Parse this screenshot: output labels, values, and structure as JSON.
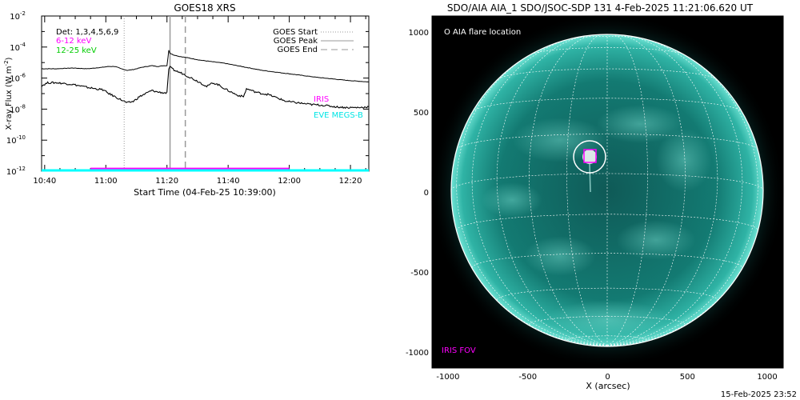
{
  "footer_timestamp": "15-Feb-2025 23:52",
  "chart_data": [
    {
      "type": "line",
      "title": "GOES18 XRS",
      "xlabel": "Start Time (04-Feb-25 10:39:00)",
      "ylabel": "X-ray Flux (W m",
      "ylabel_superscript": "-2",
      "ylabel_suffix": ")",
      "ylog": true,
      "xlim_minutes": [
        0,
        107
      ],
      "ylim_log10": [
        -12,
        -2
      ],
      "x_ticks": [
        {
          "label": "10:40",
          "min": 1
        },
        {
          "label": "11:00",
          "min": 21
        },
        {
          "label": "11:20",
          "min": 41
        },
        {
          "label": "11:40",
          "min": 61
        },
        {
          "label": "12:00",
          "min": 81
        },
        {
          "label": "12:20",
          "min": 101
        }
      ],
      "y_ticks": [
        {
          "base": "10",
          "exp": "-2",
          "v": -2
        },
        {
          "base": "10",
          "exp": "-4",
          "v": -4
        },
        {
          "base": "10",
          "exp": "-6",
          "v": -6
        },
        {
          "base": "10",
          "exp": "-8",
          "v": -8
        },
        {
          "base": "10",
          "exp": "-10",
          "v": -10
        },
        {
          "base": "10",
          "exp": "-12",
          "v": -12
        }
      ],
      "energy_labels": [
        {
          "text": "Det: 1,3,4,5,6,9",
          "color": "#000000"
        },
        {
          "text": "6-12 keV",
          "color": "#ff00ff"
        },
        {
          "text": "12-25 keV",
          "color": "#00ff00"
        }
      ],
      "legend": [
        {
          "label": "GOES Start",
          "style": "dotted",
          "color": "#999999"
        },
        {
          "label": "GOES Peak",
          "style": "solid",
          "color": "#999999"
        },
        {
          "label": "GOES End",
          "style": "dashed",
          "color": "#999999"
        }
      ],
      "legend_position": "top-right",
      "markers_min": {
        "start": 27,
        "peak": 42,
        "end": 47
      },
      "series": [
        {
          "color": "#000000",
          "x": [
            0,
            5,
            10,
            15,
            20,
            22,
            24,
            26,
            28,
            30,
            33,
            36,
            38,
            40,
            41,
            41.6,
            42,
            43,
            45,
            48,
            52,
            56,
            60,
            64,
            68,
            72,
            76,
            80,
            84,
            90,
            95,
            100,
            107
          ],
          "y_log10": [
            -5.4,
            -5.4,
            -5.35,
            -5.4,
            -5.3,
            -5.25,
            -5.25,
            -5.4,
            -5.5,
            -5.45,
            -5.3,
            -5.2,
            -5.25,
            -5.2,
            -5.2,
            -4.2,
            -4.4,
            -4.5,
            -4.6,
            -4.7,
            -4.85,
            -4.95,
            -5.05,
            -5.2,
            -5.35,
            -5.5,
            -5.6,
            -5.7,
            -5.8,
            -5.95,
            -6.05,
            -6.15,
            -6.25
          ]
        },
        {
          "color": "#000000",
          "x": [
            0,
            2,
            5,
            10,
            15,
            18,
            20,
            22,
            24,
            26,
            28,
            30,
            32,
            34,
            36,
            38,
            40,
            41,
            41.6,
            42,
            43,
            44,
            46,
            48,
            50,
            52,
            54,
            56,
            58,
            60,
            62,
            64,
            66,
            67,
            68,
            70,
            72,
            74,
            76,
            78,
            80,
            84,
            88,
            92,
            96,
            100,
            104,
            107
          ],
          "y_log10": [
            -6.5,
            -6.3,
            -6.3,
            -6.4,
            -6.6,
            -6.7,
            -6.75,
            -7.0,
            -7.2,
            -7.4,
            -7.6,
            -7.5,
            -7.2,
            -7.0,
            -6.8,
            -6.9,
            -6.95,
            -6.95,
            -5.4,
            -5.3,
            -5.45,
            -5.55,
            -5.7,
            -5.9,
            -6.1,
            -6.3,
            -6.55,
            -6.3,
            -6.45,
            -6.7,
            -6.9,
            -7.1,
            -7.2,
            -6.7,
            -6.75,
            -6.9,
            -7.0,
            -7.05,
            -7.2,
            -7.35,
            -7.5,
            -7.6,
            -7.7,
            -7.75,
            -7.85,
            -7.9,
            -7.9,
            -7.85
          ]
        }
      ],
      "iris_bar": {
        "label": "IRIS",
        "color": "#ff00ff",
        "x_start": 16,
        "x_end": 81,
        "y_log10": -11.85
      },
      "eve_label": {
        "label": "EVE MEGS-B",
        "color": "#00ffff"
      }
    },
    {
      "type": "image",
      "title": "SDO/AIA AIA_1 SDO/JSOC-SDP 131  4-Feb-2025 11:21:06.620 UT",
      "xlabel": "X (arcsec)",
      "xlim": [
        -1100,
        1100
      ],
      "ylim": [
        -1100,
        1100
      ],
      "x_ticks": [
        {
          "label": "-1000",
          "v": -1000
        },
        {
          "label": "-500",
          "v": -500
        },
        {
          "label": "0",
          "v": 0
        },
        {
          "label": "500",
          "v": 500
        },
        {
          "label": "1000",
          "v": 1000
        }
      ],
      "y_ticks": [
        {
          "label": "1000",
          "v": 1000
        },
        {
          "label": "500",
          "v": 500
        },
        {
          "label": "0",
          "v": 0
        },
        {
          "label": "-500",
          "v": -500
        },
        {
          "label": "-1000",
          "v": -1000
        }
      ],
      "legend_flare": "O AIA flare location",
      "iris_fov_label": "IRIS FOV",
      "iris_fov_color": "#ff00ff",
      "flare_location_arcsec": [
        -115,
        200
      ],
      "solar_radius_arcsec": 975,
      "disk_color": "#1a8a80"
    }
  ]
}
